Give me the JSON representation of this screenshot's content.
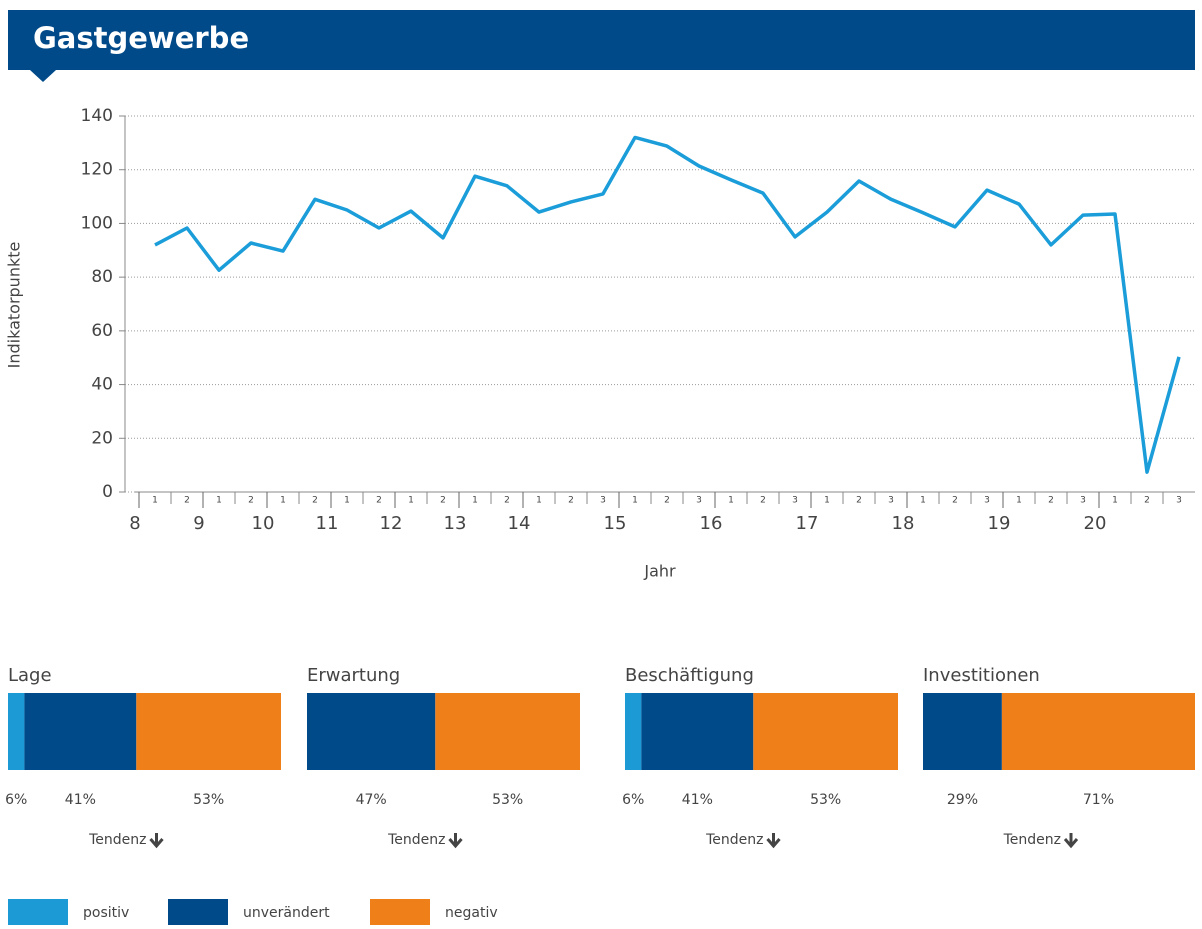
{
  "header": {
    "title": "Gastgewerbe"
  },
  "chart_data": [
    {
      "type": "line",
      "y_label": "Indikatorpunkte",
      "x_label": "Jahr",
      "color": "#1a9dd9",
      "grid": true,
      "categories": [
        "1",
        "2",
        "1",
        "2",
        "1",
        "2",
        "1",
        "2",
        "1",
        "2",
        "1",
        "2",
        "1",
        "2",
        "3",
        "1",
        "2",
        "3",
        "1",
        "2",
        "3",
        "1",
        "2",
        "3",
        "1",
        "2",
        "3",
        "1",
        "2",
        "3",
        "1",
        "2",
        "3"
      ],
      "values": [
        92,
        98.3,
        82.6,
        92.7,
        89.7,
        109,
        105,
        98.3,
        104.6,
        94.6,
        117.6,
        114,
        104.2,
        108,
        111,
        132,
        128.8,
        121.4,
        116.2,
        111.3,
        95,
        104.2,
        115.8,
        109,
        104,
        98.7,
        112.4,
        107.2,
        92,
        103.1,
        103.5,
        7.4,
        50.3
      ],
      "xticks": [
        {
          "value": 0,
          "label": "8"
        },
        {
          "value": 2,
          "label": "9"
        },
        {
          "value": 4,
          "label": "10"
        },
        {
          "value": 6,
          "label": "11"
        },
        {
          "value": 8,
          "label": "12"
        },
        {
          "value": 10,
          "label": "13"
        },
        {
          "value": 12,
          "label": "14"
        },
        {
          "value": 15,
          "label": "15"
        },
        {
          "value": 18,
          "label": "16"
        },
        {
          "value": 21,
          "label": "17"
        },
        {
          "value": 24,
          "label": "18"
        },
        {
          "value": 27,
          "label": "19"
        },
        {
          "value": 30,
          "label": "20"
        }
      ],
      "ylim": [
        0,
        140
      ],
      "yticks": [
        0,
        20,
        40,
        60,
        80,
        100,
        120,
        140
      ]
    },
    {
      "type": "stacked-bar",
      "title": "Lage",
      "tendency": {
        "label": "Tendenz",
        "direction": "down"
      },
      "series": [
        {
          "name": "positiv",
          "color": "#1b9ad6",
          "values": [
            6
          ],
          "value_labels": [
            "6%"
          ]
        },
        {
          "name": "unverändert",
          "color": "#004a8a",
          "values": [
            41
          ],
          "value_labels": [
            "41%"
          ]
        },
        {
          "name": "negativ",
          "color": "#ef8019",
          "values": [
            53
          ],
          "value_labels": [
            "53%"
          ]
        }
      ]
    },
    {
      "type": "stacked-bar",
      "title": "Erwartung",
      "tendency": {
        "label": "Tendenz",
        "direction": "down"
      },
      "series": [
        {
          "name": "unverändert",
          "color": "#004a8a",
          "values": [
            47
          ],
          "value_labels": [
            "47%"
          ]
        },
        {
          "name": "negativ",
          "color": "#ef8019",
          "values": [
            53
          ],
          "value_labels": [
            "53%"
          ]
        }
      ]
    },
    {
      "type": "stacked-bar",
      "title": "Beschäftigung",
      "tendency": {
        "label": "Tendenz",
        "direction": "down"
      },
      "series": [
        {
          "name": "positiv",
          "color": "#1b9ad6",
          "values": [
            6
          ],
          "value_labels": [
            "6%"
          ]
        },
        {
          "name": "unverändert",
          "color": "#004a8a",
          "values": [
            41
          ],
          "value_labels": [
            "41%"
          ]
        },
        {
          "name": "negativ",
          "color": "#ef8019",
          "values": [
            53
          ],
          "value_labels": [
            "53%"
          ]
        }
      ]
    },
    {
      "type": "stacked-bar",
      "title": "Investitionen",
      "tendency": {
        "label": "Tendenz",
        "direction": "down"
      },
      "series": [
        {
          "name": "unverändert",
          "color": "#004a8a",
          "values": [
            29
          ],
          "value_labels": [
            "29%"
          ]
        },
        {
          "name": "negativ",
          "color": "#ef8019",
          "values": [
            71
          ],
          "value_labels": [
            "71%"
          ]
        }
      ]
    }
  ]
}
